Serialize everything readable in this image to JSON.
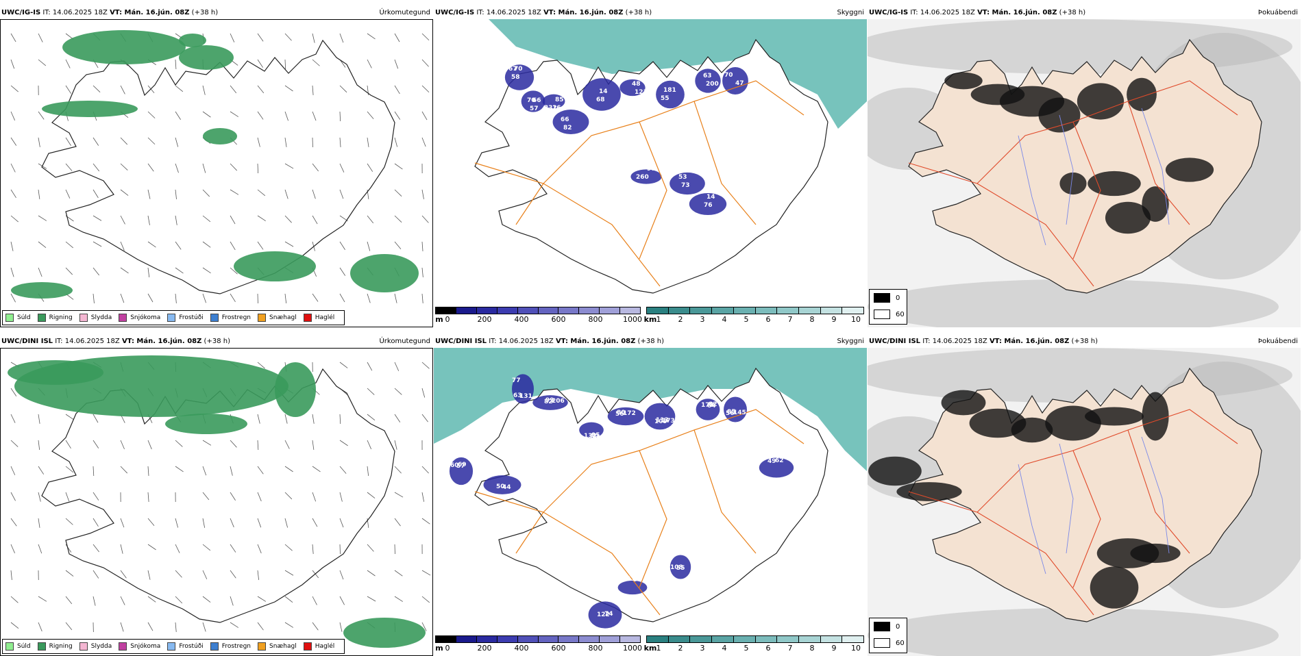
{
  "rows": [
    {
      "model": "UWC/IG-IS",
      "it_label": "IT: 14.06.2025 18Z",
      "vt_label": "VT: Mán. 16.jún. 08Z",
      "lead": "(+38 h)",
      "titles": {
        "precip": "Úrkomutegund",
        "vis": "Skyggni",
        "cloud": "Þokuábendi"
      },
      "vis_labels": [
        "67",
        "70",
        "16",
        "66",
        "68",
        "48",
        "55",
        "63",
        "47",
        "53",
        "76",
        "97",
        "58",
        "57",
        "85",
        "82",
        "14",
        "121",
        "181",
        "200",
        "70",
        "73",
        "14",
        "260",
        "70",
        "66",
        "332"
      ]
    },
    {
      "model": "UWC/DINI ISL",
      "it_label": "IT: 14.06.2025 18Z",
      "vt_label": "VT: Mán. 16.jún. 08Z",
      "lead": "(+38 h)",
      "titles": {
        "precip": "Úrkomutegund",
        "vis": "Skyggni",
        "cloud": "Þokuábendi"
      },
      "vis_labels": [
        "77",
        "82",
        "60",
        "56",
        "109",
        "64",
        "56",
        "57",
        "44",
        "49",
        "55",
        "98",
        "122",
        "131",
        "206",
        "132",
        "172",
        "173",
        "178",
        "145",
        "60",
        "50",
        "62",
        "108",
        "177",
        "74",
        "63",
        "99",
        "95",
        "80",
        "113",
        "82",
        "85",
        "69"
      ]
    }
  ],
  "precip_legend": [
    {
      "label": "Súld",
      "color": "#90ee90"
    },
    {
      "label": "Rigning",
      "color": "#3a9a5c"
    },
    {
      "label": "Slydda",
      "color": "#f4b6d2"
    },
    {
      "label": "Snjókoma",
      "color": "#c040a0"
    },
    {
      "label": "Frostúði",
      "color": "#87b9f0"
    },
    {
      "label": "Frostregn",
      "color": "#3d7fd0"
    },
    {
      "label": "Snæhagl",
      "color": "#f0a020"
    },
    {
      "label": "Haglél",
      "color": "#e01010"
    }
  ],
  "vis_scale_m": {
    "unit": "m",
    "ticks": [
      "0",
      "200",
      "400",
      "600",
      "800",
      "1000"
    ],
    "colors": [
      "#000000",
      "#1a1a8c",
      "#2a2aa0",
      "#3c3cb0",
      "#5050b8",
      "#6464c0",
      "#7878c8",
      "#8c8cd0",
      "#a0a0d8",
      "#b8b8e0"
    ]
  },
  "vis_scale_km": {
    "unit": "km",
    "ticks": [
      "1",
      "2",
      "3",
      "4",
      "5",
      "6",
      "7",
      "8",
      "9",
      "10"
    ],
    "colors": [
      "#2a8080",
      "#3a8c8c",
      "#4a9898",
      "#5aa4a4",
      "#6ab0b0",
      "#7cbcbc",
      "#90c8c8",
      "#a8d4d4",
      "#c4e2e2",
      "#e0f0f0"
    ]
  },
  "cloud_legend": [
    {
      "label": "0",
      "color": "#000000"
    },
    {
      "label": "60",
      "color": "#ffffff"
    }
  ],
  "colors": {
    "outline": "#222222",
    "roads_vis": "#e8801a",
    "roads_cloud": "#e04a2a",
    "rivers": "#7a88e8",
    "land_cloud": "#f4e2d2",
    "sea_vis": "#5fb8b0",
    "low_vis": "#2a2aa0",
    "rain": "#3a9a5c"
  }
}
